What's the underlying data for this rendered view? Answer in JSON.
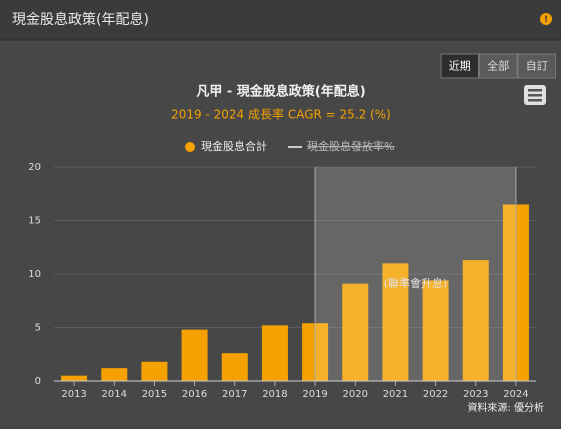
{
  "header": {
    "title": "現金股息政策(年配息)"
  },
  "buttons": [
    "近期",
    "全部",
    "自訂"
  ],
  "selected_button": 0,
  "chart_data": {
    "type": "bar",
    "title": "凡甲 - 現金股息政策(年配息)",
    "subtitle": "2019 - 2024 成長率 CAGR = 25.2 (%)",
    "categories": [
      "2013",
      "2014",
      "2015",
      "2016",
      "2017",
      "2018",
      "2019",
      "2020",
      "2021",
      "2022",
      "2023",
      "2024"
    ],
    "series": [
      {
        "name": "現金股息合計",
        "color": "#f5a200",
        "values": [
          0.5,
          1.2,
          1.8,
          4.8,
          2.6,
          5.2,
          5.4,
          9.1,
          11.0,
          9.4,
          11.3,
          16.5
        ]
      },
      {
        "name": "現金股息發放率%",
        "color": "#cccccc",
        "hidden": true
      }
    ],
    "ylim": [
      0,
      20
    ],
    "yticks": [
      0,
      5,
      10,
      15,
      20
    ],
    "grid": true,
    "plot_band": {
      "from": "2019",
      "to": "2024",
      "label": "(聯準會升息)"
    },
    "source": "資料來源: 優分析"
  }
}
